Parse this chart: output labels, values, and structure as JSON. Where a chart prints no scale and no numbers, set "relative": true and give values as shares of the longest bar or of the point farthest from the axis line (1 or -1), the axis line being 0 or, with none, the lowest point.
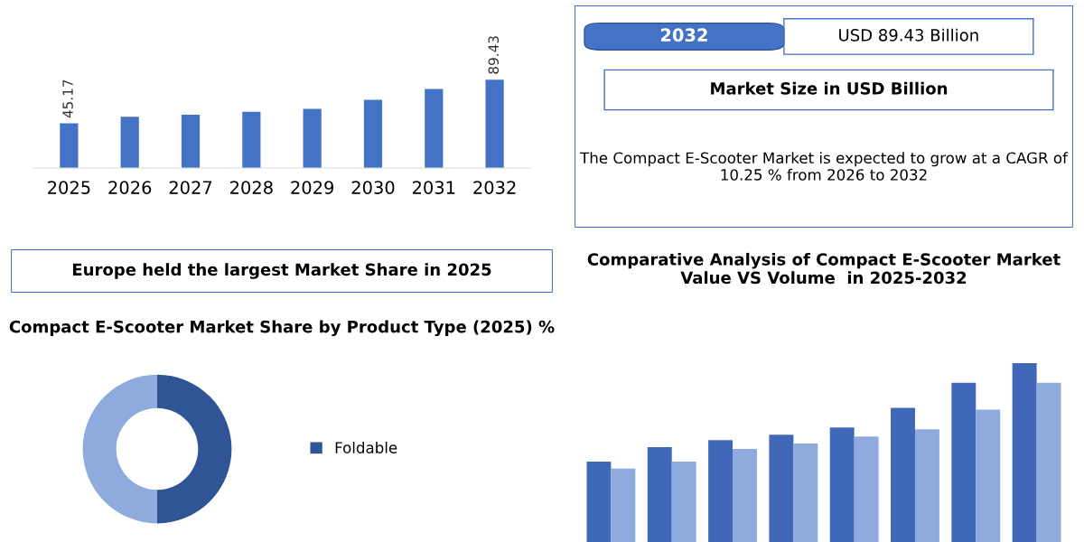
{
  "chart_data": [
    {
      "type": "bar",
      "categories": [
        "2025",
        "2026",
        "2027",
        "2028",
        "2029",
        "2030",
        "2031",
        "2032"
      ],
      "values": [
        45.17,
        52,
        54,
        57,
        60,
        69,
        80,
        89.43
      ],
      "value_labels": [
        "45.17",
        null,
        null,
        null,
        null,
        null,
        null,
        "89.43"
      ],
      "color": "#4472c4"
    },
    {
      "type": "other",
      "annotations": [
        "2032",
        "USD 89.43 Billion",
        "Market Size in USD Billion",
        "The Compact E-Scooter Market is expected to grow at a CAGR of 10.25 % from 2026 to 2032"
      ]
    },
    {
      "type": "other",
      "title": "Europe held the largest Market Share in 2025"
    },
    {
      "type": "donut",
      "title": "Compact E-Scooter Market Share by Product Type (2025) %",
      "categories": [
        "Foldable",
        null
      ],
      "values": [
        50,
        50
      ],
      "colors": [
        "#2f5597",
        "#8faadc"
      ],
      "legend": "right"
    },
    {
      "type": "bar",
      "title": "Comparative Analysis of Compact E-Scooter Market Value VS Volume  in 2025-2032",
      "relative": true,
      "categories": [
        null,
        null,
        null,
        null,
        null,
        null,
        null,
        null
      ],
      "series": [
        {
          "color": "#4168b8",
          "values": [
            0.45,
            0.53,
            0.57,
            0.6,
            0.64,
            0.75,
            0.89,
            1
          ]
        },
        {
          "color": "#8faadc",
          "values": [
            0.41,
            0.45,
            0.52,
            0.55,
            0.59,
            0.63,
            0.74,
            0.89
          ]
        }
      ]
    }
  ]
}
